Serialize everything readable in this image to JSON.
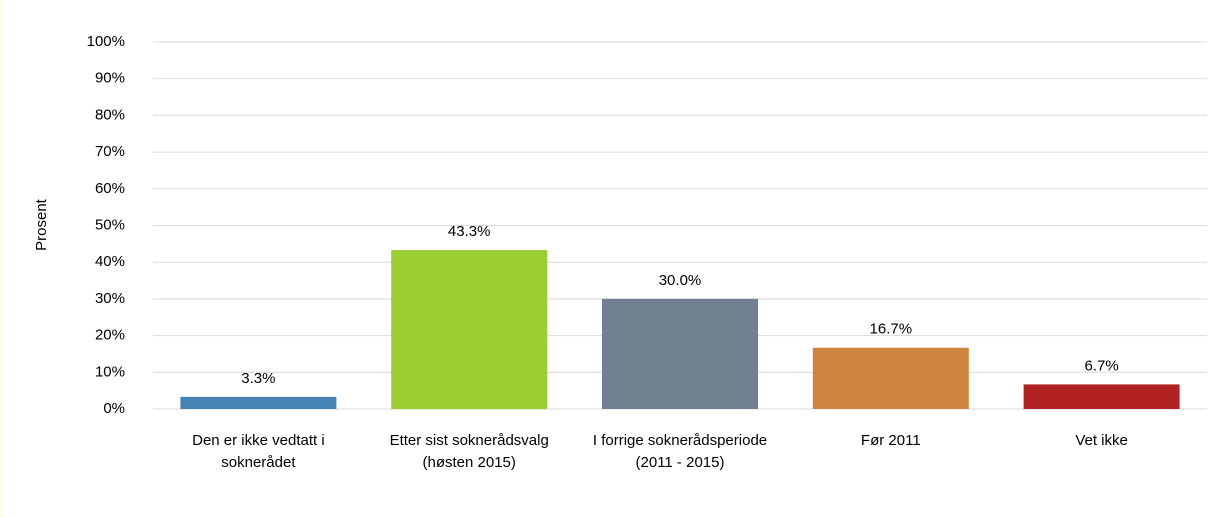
{
  "chart_data": {
    "type": "bar",
    "y_label": "Prosent",
    "categories": [
      "Den er ikke vedtatt i soknerådet",
      "Etter sist soknerådsvalg (høsten 2015)",
      "I forrige soknerådsperiode (2011 - 2015)",
      "Før 2011",
      "Vet ikke"
    ],
    "values": [
      3.3,
      43.3,
      30.0,
      16.7,
      6.7
    ],
    "value_labels": [
      "3.3%",
      "43.3%",
      "30.0%",
      "16.7%",
      "6.7%"
    ],
    "colors": [
      "#4682b4",
      "#9acd32",
      "#708090",
      "#cd853f",
      "#b22222"
    ],
    "ylim": [
      0,
      100
    ],
    "yticks": [
      {
        "value": 0,
        "label": "0%"
      },
      {
        "value": 10,
        "label": "10%"
      },
      {
        "value": 20,
        "label": "20%"
      },
      {
        "value": 30,
        "label": "30%"
      },
      {
        "value": 40,
        "label": "40%"
      },
      {
        "value": 50,
        "label": "50%"
      },
      {
        "value": 60,
        "label": "60%"
      },
      {
        "value": 70,
        "label": "70%"
      },
      {
        "value": 80,
        "label": "80%"
      },
      {
        "value": 90,
        "label": "90%"
      },
      {
        "value": 100,
        "label": "100%"
      }
    ],
    "grid": true
  }
}
